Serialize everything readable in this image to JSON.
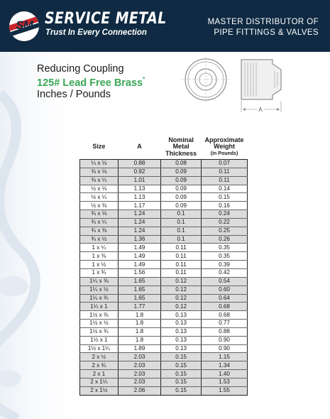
{
  "header": {
    "logo_monogram": "SM",
    "brand_name": "SERVICE METAL",
    "tagline": "Trust In Every Connection",
    "right_line1": "MASTER DISTRIBUTOR OF",
    "right_line2": "PIPE FITTINGS & VALVES",
    "background": "#0f2a42"
  },
  "product": {
    "line1": "Reducing Coupling",
    "line2": "125# Lead Free Brass",
    "line2_mark": "*",
    "line3": "Inches / Pounds",
    "accent_color": "#3aa856",
    "drawing_label": "A"
  },
  "table": {
    "headers": {
      "size": "Size",
      "a": "A",
      "thickness_1": "Nominal",
      "thickness_2": "Metal",
      "thickness_3": "Thickness",
      "weight_1": "Approximate",
      "weight_2": "Weight",
      "weight_3": "(in Pounds)"
    },
    "rows": [
      [
        "¼ x ⅛",
        "0.88",
        "0.08",
        "0.07"
      ],
      [
        "⅜ x ⅛",
        "0.92",
        "0.09",
        "0.11"
      ],
      [
        "⅜ x ¼",
        "1.01",
        "0.09",
        "0.11"
      ],
      [
        "½ x ⅛",
        "1.13",
        "0.09",
        "0.14"
      ],
      [
        "½ x ¼",
        "1.13",
        "0.09",
        "0.15"
      ],
      [
        "½ x ⅜",
        "1.17",
        "0.09",
        "0.16"
      ],
      [
        "¾ x ⅛",
        "1.24",
        "0.1",
        "0.24"
      ],
      [
        "¾ x ¼",
        "1.24",
        "0.1",
        "0.22"
      ],
      [
        "¾ x ⅜",
        "1.24",
        "0.1",
        "0.25"
      ],
      [
        "¾ x ½",
        "1.36",
        "0.1",
        "0.26"
      ],
      [
        "1 x ¼",
        "1.49",
        "0.11",
        "0.35"
      ],
      [
        "1 x ⅜",
        "1.49",
        "0.11",
        "0.35"
      ],
      [
        "1 x ½",
        "1.49",
        "0.11",
        "0.39"
      ],
      [
        "1 x ¾",
        "1.56",
        "0.11",
        "0.42"
      ],
      [
        "1¼ x ⅜",
        "1.65",
        "0.12",
        "0.54"
      ],
      [
        "1¼ x ½",
        "1.65",
        "0.12",
        "0.60"
      ],
      [
        "1¼ x ¾",
        "1.65",
        "0.12",
        "0.64"
      ],
      [
        "1¼ x 1",
        "1.77",
        "0.12",
        "0.68"
      ],
      [
        "1½ x ⅜",
        "1.8",
        "0.13",
        "0.68"
      ],
      [
        "1½ x ½",
        "1.8",
        "0.13",
        "0.77"
      ],
      [
        "1½ x ¾",
        "1.8",
        "0.13",
        "0.88"
      ],
      [
        "1½ x 1",
        "1.8",
        "0.13",
        "0.90"
      ],
      [
        "1½ x 1¼",
        "1.89",
        "0.13",
        "0.90"
      ],
      [
        "2 x ½",
        "2.03",
        "0.15",
        "1.15"
      ],
      [
        "2 x ¾",
        "2.03",
        "0.15",
        "1.34"
      ],
      [
        "2 x 1",
        "2.03",
        "0.15",
        "1.40"
      ],
      [
        "2 x 1¼",
        "2.03",
        "0.15",
        "1.53"
      ],
      [
        "2 x 1½",
        "2.06",
        "0.15",
        "1.55"
      ]
    ],
    "band_color": "#dcdcdc"
  }
}
